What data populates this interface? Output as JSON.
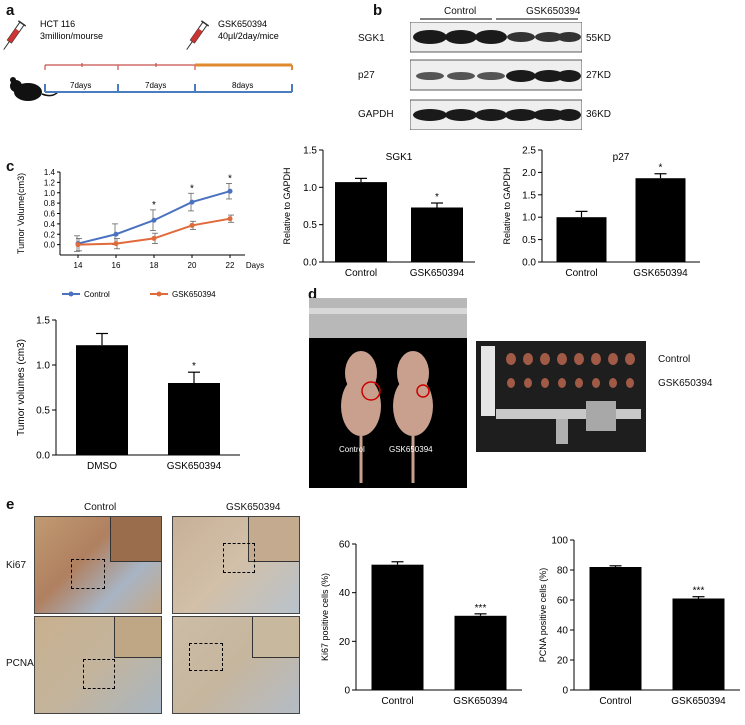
{
  "panels": {
    "a": "a",
    "b": "b",
    "c": "c",
    "d": "d",
    "e": "e"
  },
  "schematic": {
    "cell_line": "HCT 116",
    "dose1": "3million/mourse",
    "drug": "GSK650394",
    "dose2": "40μl/2day/mice",
    "periods": [
      "7days",
      "7days",
      "8days"
    ],
    "colors": {
      "injection_line": "#c8524a",
      "drug_line": "#e08a2e",
      "base_line": "#4a7dbf"
    }
  },
  "blot": {
    "groups": [
      "Control",
      "GSK650394"
    ],
    "rows": [
      {
        "name": "SGK1",
        "size": "55KD"
      },
      {
        "name": "p27",
        "size": "27KD"
      },
      {
        "name": "GAPDH",
        "size": "36KD"
      }
    ]
  },
  "photos": {
    "mice_labels": [
      "Control",
      "GSK650394"
    ],
    "tumor_labels": [
      "Control",
      "GSK650394"
    ]
  },
  "ihc": {
    "columns": [
      "Control",
      "GSK650394"
    ],
    "rows": [
      "Ki67",
      "PCNA"
    ]
  },
  "chart_data": [
    {
      "id": "tumor-growth",
      "type": "line",
      "ylabel": "Tumor Volume(cm3)",
      "xlabel": "Days",
      "x": [
        14,
        16,
        18,
        20,
        22
      ],
      "ylim": [
        -0.2,
        1.4
      ],
      "yticks": [
        "0.0",
        "0.2",
        "0.4",
        "0.6",
        "0.8",
        "1.0",
        "1.2",
        "1.4"
      ],
      "series": [
        {
          "name": "Control",
          "color": "#4a72c0",
          "values": [
            0.02,
            0.2,
            0.47,
            0.82,
            1.03
          ],
          "err": [
            0.15,
            0.2,
            0.2,
            0.17,
            0.15
          ]
        },
        {
          "name": "GSK650394",
          "color": "#e06a3a",
          "values": [
            0.0,
            0.02,
            0.12,
            0.37,
            0.5
          ],
          "err": [
            0.12,
            0.1,
            0.1,
            0.08,
            0.07
          ]
        }
      ],
      "significance": [
        {
          "x": 18,
          "label": "*"
        },
        {
          "x": 20,
          "label": "*"
        },
        {
          "x": 22,
          "label": "*"
        }
      ]
    },
    {
      "id": "tumor-volume-bar",
      "type": "bar",
      "ylabel": "Tumor volumes (cm3)",
      "categories": [
        "DMSO",
        "GSK650394"
      ],
      "values": [
        1.22,
        0.8
      ],
      "err": [
        0.13,
        0.12
      ],
      "ylim": [
        0,
        1.5
      ],
      "yticks": [
        "0.0",
        "0.5",
        "1.0",
        "1.5"
      ],
      "significance": [
        {
          "index": 1,
          "label": "*"
        }
      ]
    },
    {
      "id": "sgk1-bar",
      "type": "bar",
      "title": "SGK1",
      "ylabel": "Relative to GAPDH",
      "categories": [
        "Control",
        "GSK650394"
      ],
      "values": [
        1.07,
        0.73
      ],
      "err": [
        0.05,
        0.06
      ],
      "ylim": [
        0,
        1.5
      ],
      "yticks": [
        "0.0",
        "0.5",
        "1.0",
        "1.5"
      ],
      "significance": [
        {
          "index": 1,
          "label": "*"
        }
      ]
    },
    {
      "id": "p27-bar",
      "type": "bar",
      "title": "p27",
      "ylabel": "Relative to GAPDH",
      "categories": [
        "Control",
        "GSK650394"
      ],
      "values": [
        1.0,
        1.87
      ],
      "err": [
        0.13,
        0.1
      ],
      "ylim": [
        0,
        2.5
      ],
      "yticks": [
        "0.0",
        "0.5",
        "1.0",
        "1.5",
        "2.0",
        "2.5"
      ],
      "significance": [
        {
          "index": 1,
          "label": "*"
        }
      ]
    },
    {
      "id": "ki67-bar",
      "type": "bar",
      "ylabel": "Ki67 positive cells (%)",
      "categories": [
        "Control",
        "GSK650394"
      ],
      "values": [
        51.5,
        30.5
      ],
      "err": [
        1.2,
        0.8
      ],
      "ylim": [
        0,
        60
      ],
      "yticks": [
        "0",
        "20",
        "40",
        "60"
      ],
      "significance": [
        {
          "index": 1,
          "label": "***"
        }
      ]
    },
    {
      "id": "pcna-bar",
      "type": "bar",
      "ylabel": "PCNA positive cells (%)",
      "categories": [
        "Control",
        "GSK650394"
      ],
      "values": [
        82,
        61
      ],
      "err": [
        0.8,
        1.2
      ],
      "ylim": [
        0,
        100
      ],
      "yticks": [
        "0",
        "20",
        "40",
        "60",
        "80",
        "100"
      ],
      "significance": [
        {
          "index": 1,
          "label": "***"
        }
      ]
    }
  ]
}
